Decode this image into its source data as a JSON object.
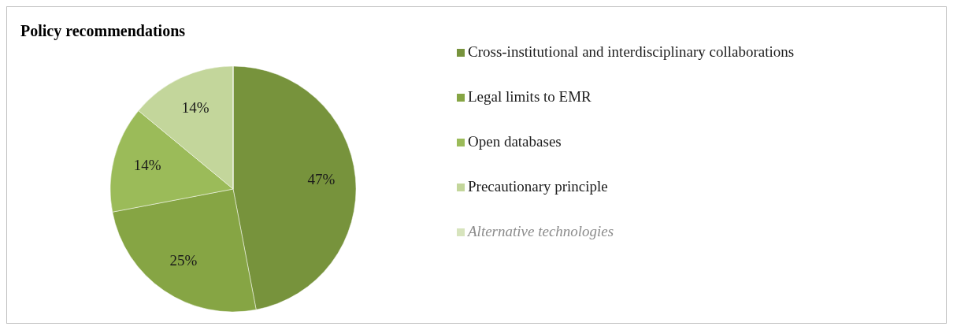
{
  "chart_data": {
    "type": "pie",
    "title": "Policy recommendations",
    "categories": [
      "Cross-institutional and interdisciplinary collaborations",
      "Legal limits to EMR",
      "Open databases",
      "Precautionary principle",
      "Alternative technologies"
    ],
    "values": [
      47,
      25,
      14,
      14,
      0
    ],
    "colors": [
      "#77933c",
      "#86a544",
      "#9bbb59",
      "#c3d69b",
      "#d7e4bd"
    ],
    "value_labels": [
      "47%",
      "25%",
      "14%",
      "14%",
      null
    ],
    "legend": "right"
  }
}
